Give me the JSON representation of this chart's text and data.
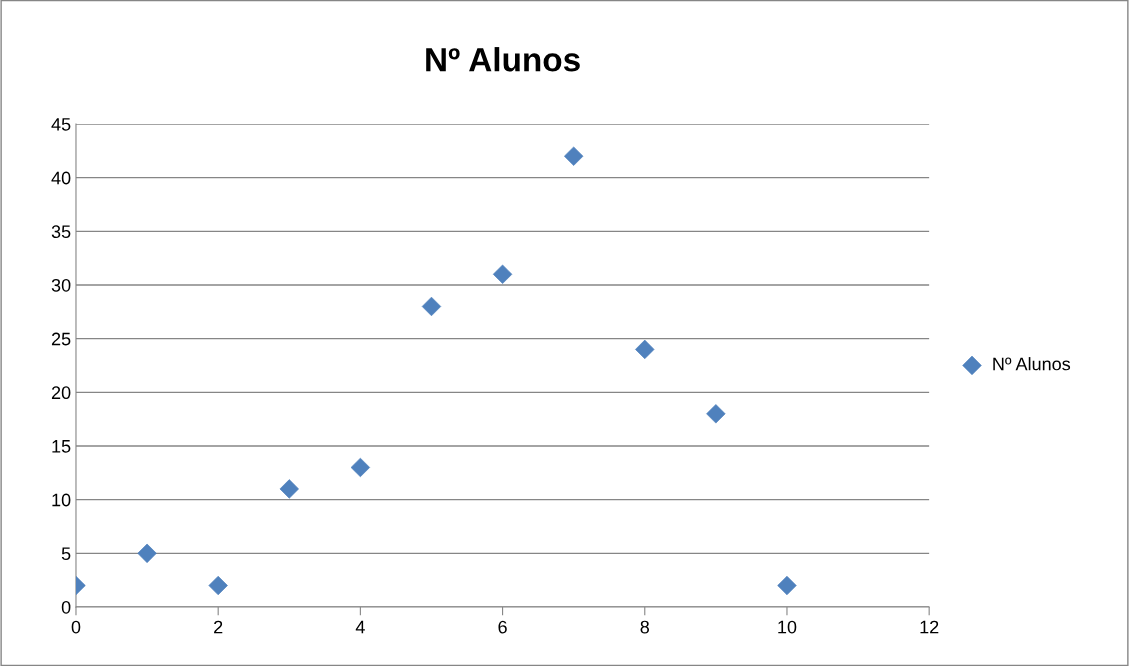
{
  "chart_data": {
    "type": "scatter",
    "title": "Nº Alunos",
    "x": [
      0,
      1,
      2,
      3,
      4,
      5,
      6,
      7,
      8,
      9,
      10
    ],
    "series": [
      {
        "name": "Nº Alunos",
        "color": "#4f81bd",
        "values": [
          2,
          5,
          2,
          11,
          13,
          28,
          31,
          42,
          24,
          18,
          2
        ]
      }
    ],
    "xlim": [
      0,
      12
    ],
    "xticks": [
      0,
      2,
      4,
      6,
      8,
      10,
      12
    ],
    "ylim": [
      0,
      45
    ],
    "yticks": [
      0,
      5,
      10,
      15,
      20,
      25,
      30,
      35,
      40,
      45
    ],
    "grid": "y",
    "legend": "right",
    "marker": "diamond"
  }
}
